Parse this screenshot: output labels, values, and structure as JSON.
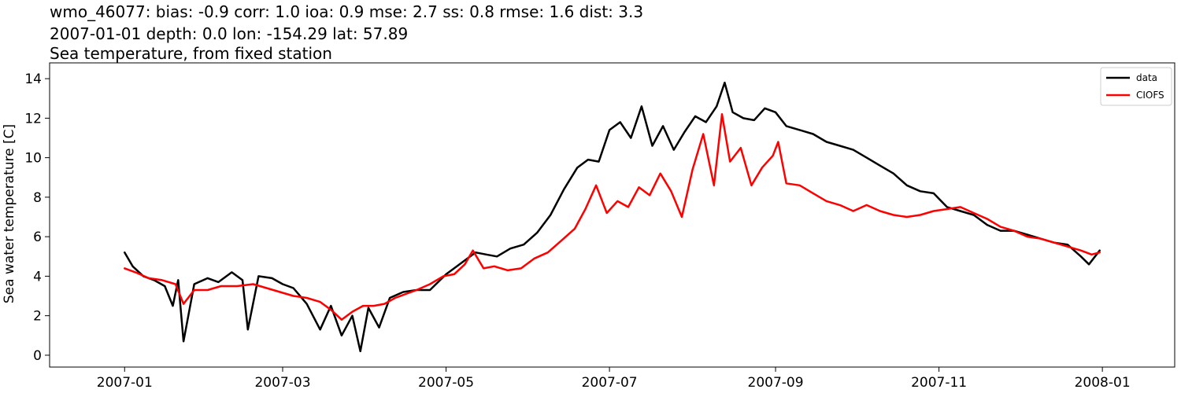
{
  "chart_data": {
    "type": "line",
    "title_lines": [
      "wmo_46077: bias: -0.9  corr: 1.0  ioa: 0.9  mse: 2.7  ss: 0.8  rmse: 1.6  dist: 3.3",
      "2007-01-01 depth: 0.0 lon: -154.29 lat: 57.89",
      "Sea temperature, from fixed station"
    ],
    "xlabel": "",
    "ylabel": "Sea water temperature [C]",
    "xlim": [
      "2006-12-04",
      "2008-01-28"
    ],
    "ylim": [
      -0.6,
      14.8
    ],
    "x_ticks": [
      "2007-01",
      "2007-03",
      "2007-05",
      "2007-07",
      "2007-09",
      "2007-11",
      "2008-01"
    ],
    "y_ticks": [
      0,
      2,
      4,
      6,
      8,
      10,
      12,
      14
    ],
    "grid": false,
    "legend_position": "top-right",
    "series": [
      {
        "name": "data",
        "color": "#000000",
        "x": [
          "2007-01-01",
          "2007-01-04",
          "2007-01-08",
          "2007-01-12",
          "2007-01-16",
          "2007-01-19",
          "2007-01-21",
          "2007-01-23",
          "2007-01-27",
          "2007-02-01",
          "2007-02-05",
          "2007-02-10",
          "2007-02-14",
          "2007-02-16",
          "2007-02-20",
          "2007-02-25",
          "2007-03-01",
          "2007-03-05",
          "2007-03-10",
          "2007-03-15",
          "2007-03-19",
          "2007-03-23",
          "2007-03-27",
          "2007-03-30",
          "2007-04-02",
          "2007-04-06",
          "2007-04-10",
          "2007-04-15",
          "2007-04-20",
          "2007-04-25",
          "2007-05-01",
          "2007-05-04",
          "2007-05-08",
          "2007-05-12",
          "2007-05-16",
          "2007-05-20",
          "2007-05-25",
          "2007-05-30",
          "2007-06-04",
          "2007-06-09",
          "2007-06-14",
          "2007-06-19",
          "2007-06-23",
          "2007-06-27",
          "2007-07-01",
          "2007-07-05",
          "2007-07-09",
          "2007-07-13",
          "2007-07-17",
          "2007-07-21",
          "2007-07-25",
          "2007-07-29",
          "2007-08-02",
          "2007-08-06",
          "2007-08-10",
          "2007-08-13",
          "2007-08-16",
          "2007-08-20",
          "2007-08-24",
          "2007-08-28",
          "2007-09-01",
          "2007-09-05",
          "2007-09-10",
          "2007-09-15",
          "2007-09-20",
          "2007-09-25",
          "2007-09-30",
          "2007-10-05",
          "2007-10-10",
          "2007-10-15",
          "2007-10-20",
          "2007-10-25",
          "2007-10-30",
          "2007-11-04",
          "2007-11-09",
          "2007-11-14",
          "2007-11-19",
          "2007-11-24",
          "2007-11-29",
          "2007-12-04",
          "2007-12-09",
          "2007-12-14",
          "2007-12-19",
          "2007-12-24",
          "2007-12-27",
          "2007-12-31"
        ],
        "y": [
          5.2,
          4.5,
          4.0,
          3.8,
          3.5,
          2.5,
          3.8,
          0.7,
          3.6,
          3.9,
          3.7,
          4.2,
          3.8,
          1.3,
          4.0,
          3.9,
          3.6,
          3.4,
          2.6,
          1.3,
          2.5,
          1.0,
          2.0,
          0.2,
          2.4,
          1.4,
          2.9,
          3.2,
          3.3,
          3.3,
          4.1,
          4.4,
          4.8,
          5.2,
          5.1,
          5.0,
          5.4,
          5.6,
          6.2,
          7.1,
          8.4,
          9.5,
          9.9,
          9.8,
          11.4,
          11.8,
          11.0,
          12.6,
          10.6,
          11.6,
          10.4,
          11.3,
          12.1,
          11.8,
          12.6,
          13.8,
          12.3,
          12.0,
          11.9,
          12.5,
          12.3,
          11.6,
          11.4,
          11.2,
          10.8,
          10.6,
          10.4,
          10.0,
          9.6,
          9.2,
          8.6,
          8.3,
          8.2,
          7.5,
          7.3,
          7.1,
          6.6,
          6.3,
          6.3,
          6.1,
          5.9,
          5.7,
          5.6,
          5.0,
          4.6,
          5.3
        ]
      },
      {
        "name": "CIOFS",
        "color": "#ff0000",
        "x": [
          "2007-01-01",
          "2007-01-05",
          "2007-01-10",
          "2007-01-15",
          "2007-01-20",
          "2007-01-23",
          "2007-01-27",
          "2007-02-01",
          "2007-02-06",
          "2007-02-12",
          "2007-02-18",
          "2007-02-23",
          "2007-02-28",
          "2007-03-05",
          "2007-03-10",
          "2007-03-15",
          "2007-03-19",
          "2007-03-23",
          "2007-03-27",
          "2007-03-31",
          "2007-04-04",
          "2007-04-08",
          "2007-04-12",
          "2007-04-16",
          "2007-04-20",
          "2007-04-25",
          "2007-04-30",
          "2007-05-04",
          "2007-05-08",
          "2007-05-11",
          "2007-05-15",
          "2007-05-19",
          "2007-05-24",
          "2007-05-29",
          "2007-06-03",
          "2007-06-08",
          "2007-06-13",
          "2007-06-18",
          "2007-06-22",
          "2007-06-26",
          "2007-06-30",
          "2007-07-04",
          "2007-07-08",
          "2007-07-12",
          "2007-07-16",
          "2007-07-20",
          "2007-07-24",
          "2007-07-28",
          "2007-08-01",
          "2007-08-05",
          "2007-08-09",
          "2007-08-12",
          "2007-08-15",
          "2007-08-19",
          "2007-08-23",
          "2007-08-27",
          "2007-08-31",
          "2007-09-02",
          "2007-09-05",
          "2007-09-10",
          "2007-09-15",
          "2007-09-20",
          "2007-09-25",
          "2007-09-30",
          "2007-10-05",
          "2007-10-10",
          "2007-10-15",
          "2007-10-20",
          "2007-10-25",
          "2007-10-30",
          "2007-11-04",
          "2007-11-09",
          "2007-11-14",
          "2007-11-19",
          "2007-11-24",
          "2007-11-29",
          "2007-12-04",
          "2007-12-09",
          "2007-12-14",
          "2007-12-19",
          "2007-12-24",
          "2007-12-28",
          "2007-12-31"
        ],
        "y": [
          4.4,
          4.2,
          3.9,
          3.8,
          3.6,
          2.6,
          3.3,
          3.3,
          3.5,
          3.5,
          3.6,
          3.4,
          3.2,
          3.0,
          2.9,
          2.7,
          2.3,
          1.8,
          2.2,
          2.5,
          2.5,
          2.6,
          2.9,
          3.1,
          3.3,
          3.6,
          4.0,
          4.1,
          4.6,
          5.3,
          4.4,
          4.5,
          4.3,
          4.4,
          4.9,
          5.2,
          5.8,
          6.4,
          7.4,
          8.6,
          7.2,
          7.8,
          7.5,
          8.5,
          8.1,
          9.2,
          8.3,
          7.0,
          9.4,
          11.2,
          8.6,
          12.2,
          9.8,
          10.5,
          8.6,
          9.5,
          10.1,
          10.8,
          8.7,
          8.6,
          8.2,
          7.8,
          7.6,
          7.3,
          7.6,
          7.3,
          7.1,
          7.0,
          7.1,
          7.3,
          7.4,
          7.5,
          7.2,
          6.9,
          6.5,
          6.3,
          6.0,
          5.9,
          5.7,
          5.5,
          5.3,
          5.1,
          5.2
        ]
      }
    ]
  }
}
